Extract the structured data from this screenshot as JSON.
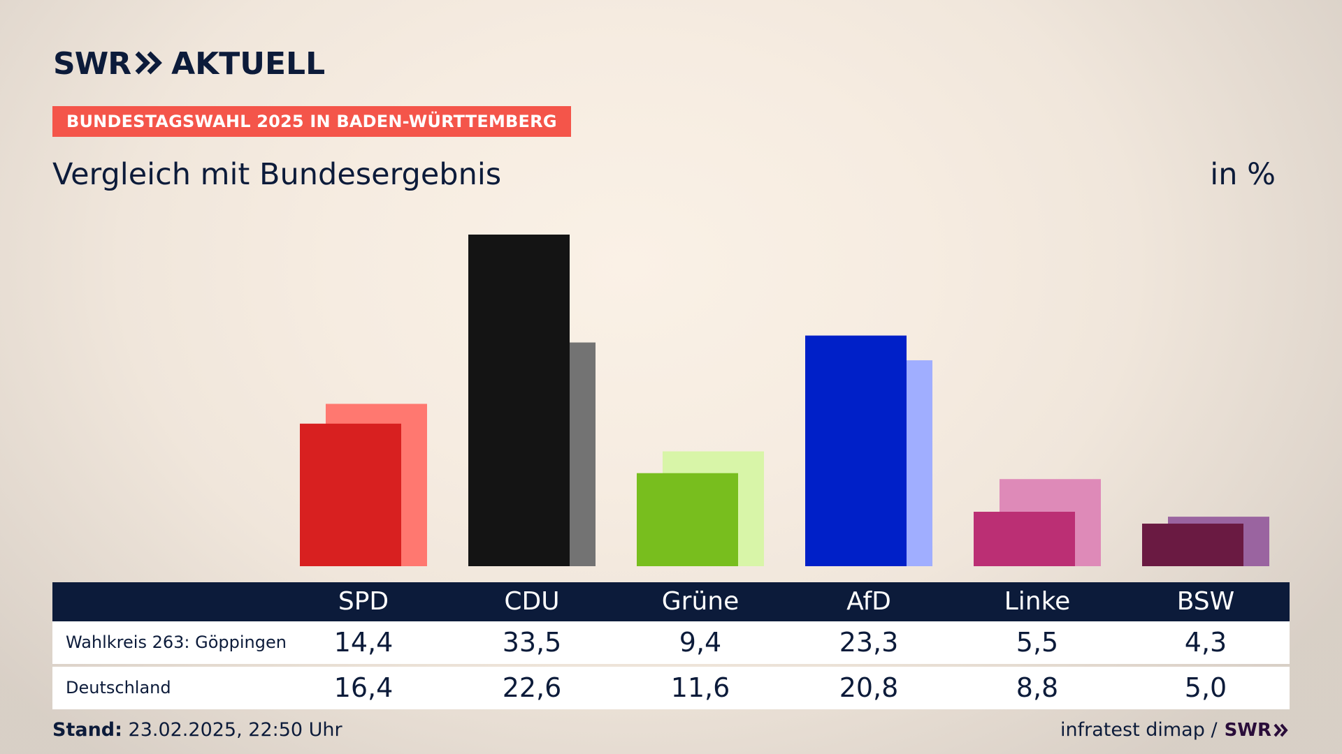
{
  "brand": {
    "logo_text": "SWR",
    "logo_suffix": "AKTUELL",
    "logo_icon": "double-chevron-right-icon"
  },
  "badge": "BUNDESTAGSWAHL 2025 IN BADEN-WÜRTTEMBERG",
  "subtitle": "Vergleich mit Bundesergebnis",
  "unit": "in %",
  "table": {
    "rows": [
      {
        "label": "Wahlkreis 263: Göppingen",
        "values": [
          "14,4",
          "33,5",
          "9,4",
          "23,3",
          "5,5",
          "4,3"
        ]
      },
      {
        "label": "Deutschland",
        "values": [
          "16,4",
          "22,6",
          "11,6",
          "20,8",
          "8,8",
          "5,0"
        ]
      }
    ]
  },
  "footer": {
    "stand_label": "Stand:",
    "stand_value": "23.02.2025, 22:50 Uhr",
    "source": "infratest dimap /",
    "source_logo": "SWR"
  },
  "colors": {
    "navy": "#0c1b3a",
    "badge": "#f4554a",
    "background": "#f6ece1"
  },
  "chart_data": {
    "type": "bar",
    "categories": [
      "SPD",
      "CDU",
      "Grüne",
      "AfD",
      "Linke",
      "BSW"
    ],
    "series": [
      {
        "name": "Wahlkreis 263: Göppingen",
        "values": [
          14.4,
          33.5,
          9.4,
          23.3,
          5.5,
          4.3
        ],
        "colors": [
          "#d82020",
          "#141414",
          "#78be1e",
          "#0020c8",
          "#bb2f74",
          "#6a1a42"
        ]
      },
      {
        "name": "Deutschland",
        "values": [
          16.4,
          22.6,
          11.6,
          20.8,
          8.8,
          5.0
        ],
        "colors": [
          "#ff7870",
          "#737373",
          "#d8f5a8",
          "#a0aeff",
          "#de8ab8",
          "#9a64a0"
        ]
      }
    ],
    "ylim": [
      0,
      33.5
    ],
    "grid": false,
    "legend": "table-below"
  }
}
